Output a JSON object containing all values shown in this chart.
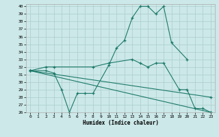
{
  "xlabel": "Humidex (Indice chaleur)",
  "bg_color": "#cce8e8",
  "grid_color": "#aacccc",
  "line_color": "#1a7868",
  "xlim": [
    -0.5,
    23.5
  ],
  "ylim": [
    26,
    40.3
  ],
  "yticks": [
    26,
    27,
    28,
    29,
    30,
    31,
    32,
    33,
    34,
    35,
    36,
    37,
    38,
    39,
    40
  ],
  "xticks": [
    0,
    1,
    2,
    3,
    4,
    5,
    6,
    7,
    8,
    9,
    10,
    11,
    12,
    13,
    14,
    15,
    16,
    17,
    18,
    19,
    20,
    21,
    22,
    23
  ],
  "lines": [
    {
      "x": [
        0,
        2,
        3,
        4,
        5,
        6,
        7,
        8,
        10,
        11,
        12,
        13,
        14,
        15,
        16,
        17,
        18,
        20
      ],
      "y": [
        31.5,
        31.5,
        31.2,
        29,
        26,
        28.5,
        28.5,
        28.5,
        32.2,
        34.5,
        35.5,
        38.5,
        40,
        40,
        39,
        40,
        35.2,
        33
      ]
    },
    {
      "x": [
        0,
        2,
        3,
        8,
        10,
        13,
        14,
        15,
        16,
        17,
        19,
        20,
        21,
        22,
        23
      ],
      "y": [
        31.5,
        32,
        32,
        32,
        32.5,
        33,
        32.5,
        32,
        32.5,
        32.5,
        29,
        29,
        26.5,
        26.5,
        26
      ]
    },
    {
      "x": [
        0,
        23
      ],
      "y": [
        31.5,
        26
      ]
    },
    {
      "x": [
        0,
        23
      ],
      "y": [
        31.5,
        28
      ]
    }
  ]
}
